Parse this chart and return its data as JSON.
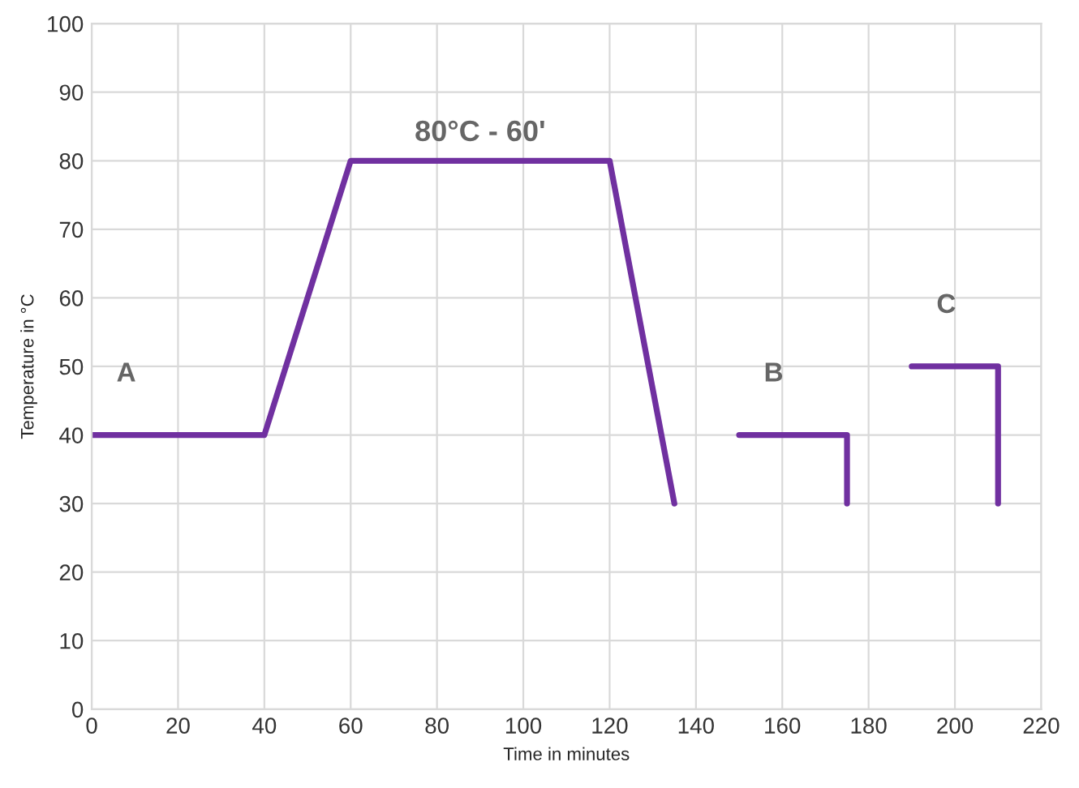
{
  "chart_data": {
    "type": "line",
    "xlabel": "Time in minutes",
    "ylabel": "Temperature in °C",
    "series": [
      {
        "name": "A",
        "color": "#7030a0",
        "x": [
          0,
          40,
          60,
          120,
          135
        ],
        "values": [
          40,
          40,
          80,
          80,
          30
        ]
      },
      {
        "name": "B",
        "color": "#7030a0",
        "x": [
          150,
          175,
          175
        ],
        "values": [
          40,
          40,
          30
        ]
      },
      {
        "name": "C",
        "color": "#7030a0",
        "x": [
          190,
          210,
          210
        ],
        "values": [
          50,
          50,
          30
        ]
      }
    ],
    "annotations": [
      {
        "text": "80°C - 60'",
        "x": 90,
        "y": 80
      }
    ],
    "xlim": [
      0,
      220
    ],
    "xticks": [
      0,
      20,
      40,
      60,
      80,
      100,
      120,
      140,
      160,
      180,
      200,
      220
    ],
    "ylim": [
      0,
      100
    ],
    "yticks": [
      0,
      10,
      20,
      30,
      40,
      50,
      60,
      70,
      80,
      90,
      100
    ],
    "grid": true,
    "marker": "none",
    "line_style": "solid",
    "legend": false
  }
}
